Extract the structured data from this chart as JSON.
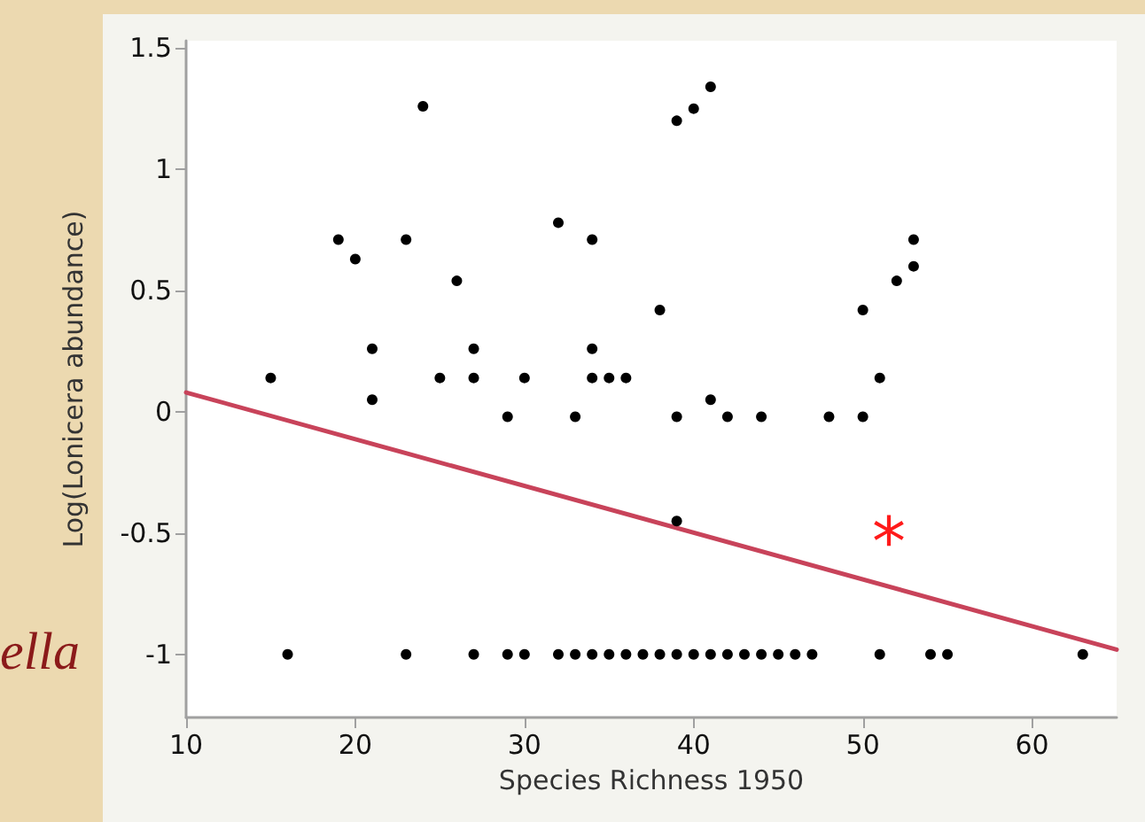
{
  "chart_data": {
    "type": "scatter",
    "xlabel": "Species Richness 1950",
    "ylabel": "Log(Lonicera abundance)",
    "xlim": [
      10,
      65
    ],
    "ylim": [
      -1.26,
      1.53
    ],
    "xticks": [
      10,
      20,
      30,
      40,
      50,
      60
    ],
    "yticks": [
      -1,
      -0.5,
      0,
      0.5,
      1,
      1.5
    ],
    "grid": false,
    "marker": "circle",
    "series": [
      {
        "color": "#000000",
        "x": [
          15,
          19,
          20,
          21,
          21,
          23,
          24,
          25,
          26,
          27,
          27,
          29,
          30,
          32,
          33,
          34,
          34,
          34,
          35,
          36,
          38,
          39,
          39,
          39,
          40,
          41,
          41,
          42,
          44,
          48,
          50,
          50,
          51,
          52,
          53,
          53,
          16,
          23,
          27,
          29,
          30,
          32,
          33,
          34,
          35,
          36,
          37,
          38,
          39,
          40,
          41,
          42,
          43,
          44,
          45,
          46,
          47,
          51,
          54,
          55,
          63
        ],
        "values": [
          0.14,
          0.71,
          0.63,
          0.26,
          0.05,
          0.71,
          1.26,
          0.14,
          0.54,
          0.26,
          0.14,
          -0.02,
          0.14,
          0.78,
          -0.02,
          0.71,
          0.26,
          0.14,
          0.14,
          0.14,
          0.42,
          1.2,
          -0.02,
          -0.45,
          1.25,
          1.34,
          0.05,
          -0.02,
          -0.02,
          -0.02,
          0.42,
          -0.02,
          0.14,
          0.54,
          0.6,
          0.71,
          -1,
          -1,
          -1,
          -1,
          -1,
          -1,
          -1,
          -1,
          -1,
          -1,
          -1,
          -1,
          -1,
          -1,
          -1,
          -1,
          -1,
          -1,
          -1,
          -1,
          -1,
          -1,
          -1,
          -1,
          -1
        ]
      },
      {
        "type": "line",
        "color": "#c8435a",
        "line_style": "solid",
        "marker": "none",
        "x": [
          10,
          65
        ],
        "values": [
          0.08,
          -0.98
        ]
      }
    ],
    "annotations": [
      "*",
      "ella"
    ]
  }
}
